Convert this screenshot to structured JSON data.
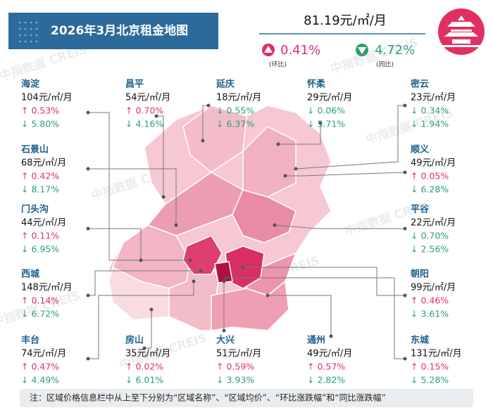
{
  "header": {
    "title": "2026年3月北京租金地图",
    "price": "81.19元/㎡/月",
    "mom": "0.41%",
    "mom_label": "(环比)",
    "yoy": "4.72%",
    "yoy_label": "(同比)"
  },
  "watermark": "中指数据 CREIS",
  "districts": [
    {
      "name": "海淀",
      "price": "104元/㎡/月",
      "mom": "↑ 0.53%",
      "yoy": "↓ 5.80%"
    },
    {
      "name": "昌平",
      "price": "54元/㎡/月",
      "mom": "↑ 0.70%",
      "yoy": "↓ 4.16%"
    },
    {
      "name": "延庆",
      "price": "18元/㎡/月",
      "mom": "↓ 0.55%",
      "yoy": "↓ 6.37%"
    },
    {
      "name": "怀柔",
      "price": "29元/㎡/月",
      "mom": "↓ 0.06%",
      "yoy": "↓ 5.71%"
    },
    {
      "name": "密云",
      "price": "23元/㎡/月",
      "mom": "↓ 0.34%",
      "yoy": "↓ 1.94%"
    },
    {
      "name": "石景山",
      "price": "68元/㎡/月",
      "mom": "↑ 0.42%",
      "yoy": "↓ 8.17%"
    },
    {
      "name": "顺义",
      "price": "49元/㎡/月",
      "mom": "↑ 0.05%",
      "yoy": "↓ 6.28%"
    },
    {
      "name": "门头沟",
      "price": "44元/㎡/月",
      "mom": "↑ 0.11%",
      "yoy": "↓ 6.95%"
    },
    {
      "name": "平谷",
      "price": "22元/㎡/月",
      "mom": "↓ 0.70%",
      "yoy": "↓ 2.56%"
    },
    {
      "name": "西城",
      "price": "148元/㎡/月",
      "mom": "↑ 0.14%",
      "yoy": "↓ 6.72%"
    },
    {
      "name": "朝阳",
      "price": "99元/㎡/月",
      "mom": "↑ 0.46%",
      "yoy": "↓ 3.61%"
    },
    {
      "name": "丰台",
      "price": "74元/㎡/月",
      "mom": "↑ 0.47%",
      "yoy": "↓ 4.49%"
    },
    {
      "name": "房山",
      "price": "35元/㎡/月",
      "mom": "↑ 0.02%",
      "yoy": "↓ 6.01%"
    },
    {
      "name": "大兴",
      "price": "51元/㎡/月",
      "mom": "↑ 0.59%",
      "yoy": "↓ 3.93%"
    },
    {
      "name": "通州",
      "price": "49元/㎡/月",
      "mom": "↑ 0.57%",
      "yoy": "↓ 2.82%"
    },
    {
      "name": "东城",
      "price": "131元/㎡/月",
      "mom": "↑ 0.15%",
      "yoy": "↓ 5.28%"
    }
  ],
  "note": "注：区域价格信息栏中从上至下分别为“区域名称”、“区域均价”、“环比涨跌幅”和“同比涨跌幅”"
}
